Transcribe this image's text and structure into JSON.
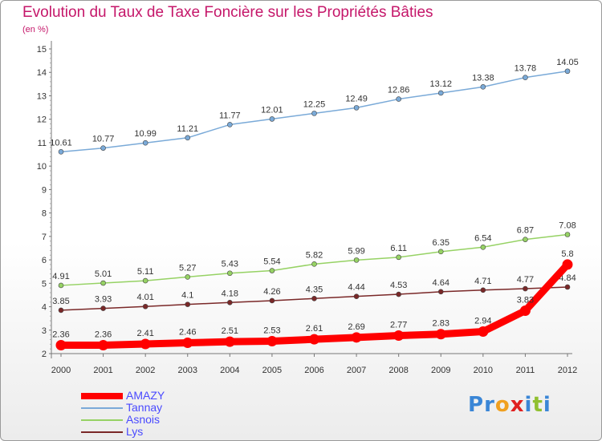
{
  "title": "Evolution du Taux de Taxe Foncière sur les Propriétés Bâties",
  "subtitle": "(en %)",
  "logo": {
    "letters": [
      "P",
      "r",
      "o",
      "x",
      "i",
      "t",
      "i"
    ],
    "colors": [
      "#3a86d6",
      "#3a86d6",
      "#f0a020",
      "#e02020",
      "#3a86d6",
      "#90c030",
      "#3a86d6"
    ]
  },
  "chart_data": {
    "type": "line",
    "title": "Evolution du Taux de Taxe Foncière sur les Propriétés Bâties",
    "ylabel": "(en %)",
    "xlabel": "",
    "x": [
      "2000",
      "2001",
      "2002",
      "2003",
      "2004",
      "2005",
      "2006",
      "2007",
      "2008",
      "2009",
      "2010",
      "2011",
      "2012"
    ],
    "ylim": [
      2,
      15
    ],
    "yticks": [
      "2",
      "3",
      "4",
      "5",
      "6",
      "7",
      "8",
      "9",
      "10",
      "11",
      "12",
      "13",
      "14",
      "15"
    ],
    "grid": false,
    "legend": "bottom-left",
    "series": [
      {
        "name": "AMAZY",
        "color": "#ff0000",
        "emphasis": true,
        "values": [
          2.36,
          2.36,
          2.41,
          2.46,
          2.51,
          2.53,
          2.61,
          2.69,
          2.77,
          2.83,
          2.94,
          3.83,
          5.8
        ],
        "labels": [
          "2.36",
          "2.36",
          "2.41",
          "2.46",
          "2.51",
          "2.53",
          "2.61",
          "2.69",
          "2.77",
          "2.83",
          "2.94",
          "3.83",
          "5.8"
        ]
      },
      {
        "name": "Tannay",
        "color": "#7aaad8",
        "values": [
          10.61,
          10.77,
          10.99,
          11.21,
          11.77,
          12.01,
          12.25,
          12.49,
          12.86,
          13.12,
          13.38,
          13.78,
          14.05
        ],
        "labels": [
          "10.61",
          "10.77",
          "10.99",
          "11.21",
          "11.77",
          "12.01",
          "12.25",
          "12.49",
          "12.86",
          "13.12",
          "13.38",
          "13.78",
          "14.05"
        ]
      },
      {
        "name": "Asnois",
        "color": "#96d264",
        "values": [
          4.91,
          5.01,
          5.11,
          5.27,
          5.43,
          5.54,
          5.82,
          5.99,
          6.11,
          6.35,
          6.54,
          6.87,
          7.08
        ],
        "labels": [
          "4.91",
          "5.01",
          "5.11",
          "5.27",
          "5.43",
          "5.54",
          "5.82",
          "5.99",
          "6.11",
          "6.35",
          "6.54",
          "6.87",
          "7.08"
        ]
      },
      {
        "name": "Lys",
        "color": "#7a2828",
        "values": [
          3.85,
          3.93,
          4.01,
          4.1,
          4.18,
          4.26,
          4.35,
          4.44,
          4.53,
          4.64,
          4.71,
          4.77,
          4.84
        ],
        "labels": [
          "3.85",
          "3.93",
          "4.01",
          "4.1",
          "4.18",
          "4.26",
          "4.35",
          "4.44",
          "4.53",
          "4.64",
          "4.71",
          "4.77",
          "4.84"
        ]
      }
    ]
  }
}
